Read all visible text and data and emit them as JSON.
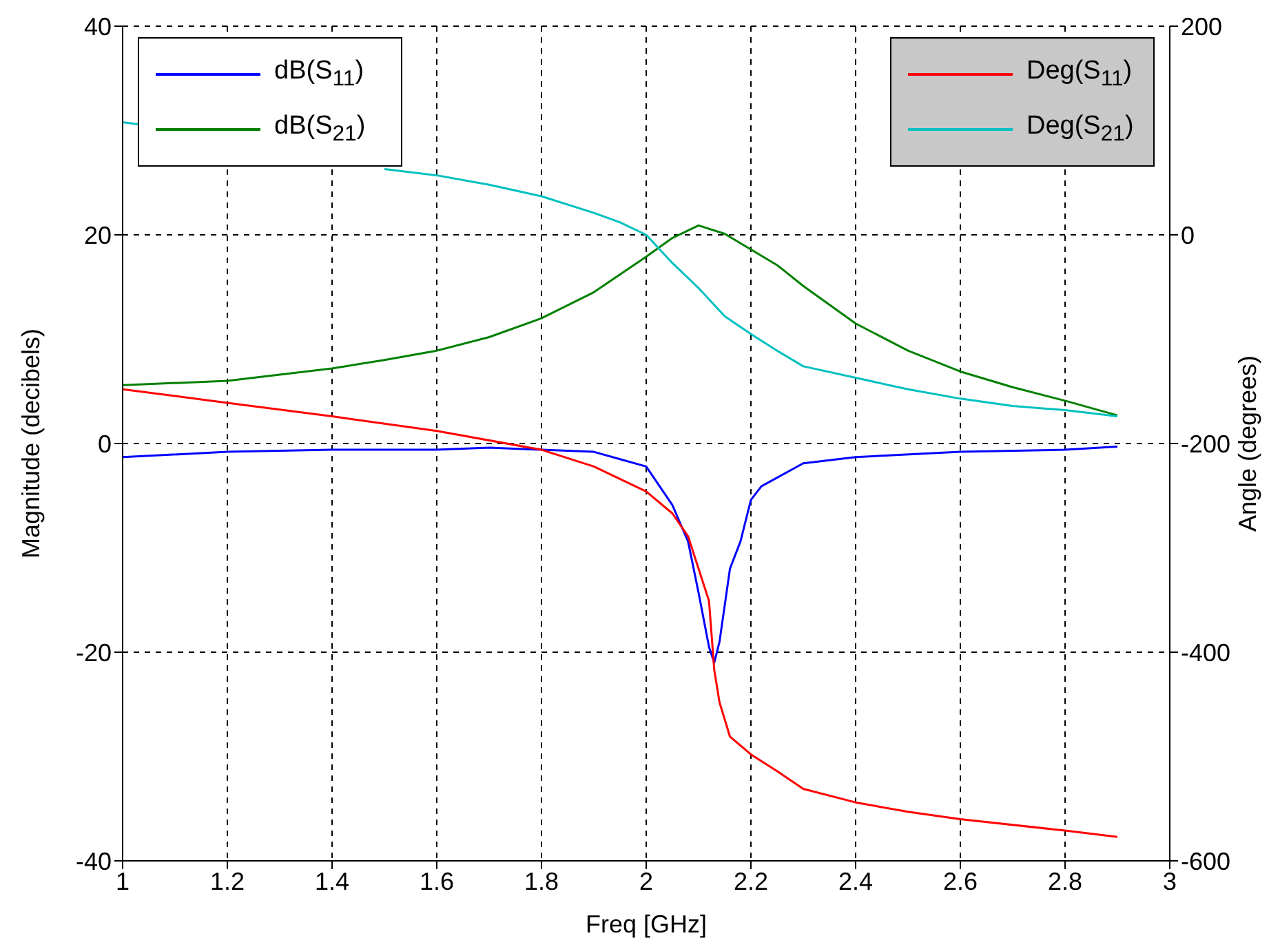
{
  "chart_data": {
    "type": "line",
    "xlabel": "Freq [GHz]",
    "ylabel": "Magnitude (decibels)",
    "y2label": "Angle (degrees)",
    "xlim": [
      1,
      3
    ],
    "xticks": [
      1,
      1.2,
      1.4,
      1.6,
      1.8,
      2,
      2.2,
      2.4,
      2.6,
      2.8,
      3
    ],
    "ylim": [
      -40,
      40
    ],
    "yticks": [
      -40,
      -20,
      0,
      20,
      40
    ],
    "y2lim": [
      -600,
      200
    ],
    "y2ticks": [
      -600,
      -400,
      -200,
      0,
      200
    ],
    "grid": true,
    "legend": "top",
    "line_style": "solid",
    "marker": "none",
    "series": [
      {
        "name": "dB(S$_{11}$)",
        "color": "#0000ff",
        "x": [
          1,
          1.2,
          1.4,
          1.6,
          1.7,
          1.8,
          1.9,
          1.95,
          2,
          2.05,
          2.08,
          2.1,
          2.12,
          2.13,
          2.14,
          2.16,
          2.18,
          2.2,
          2.22,
          2.3,
          2.4,
          2.6,
          2.8,
          2.9
        ],
        "values": [
          -1.3,
          -0.8,
          -0.6,
          -0.6,
          -0.4,
          -0.6,
          -0.8,
          -1.5,
          -2.2,
          -5.9,
          -9.4,
          -14.3,
          -19.5,
          -21,
          -19,
          -12,
          -9.4,
          -5.4,
          -4.1,
          -1.9,
          -1.3,
          -0.8,
          -0.6,
          -0.3
        ]
      },
      {
        "name": "dB(S$_{21}$)",
        "color": "#008000",
        "x": [
          1,
          1.2,
          1.4,
          1.5,
          1.6,
          1.7,
          1.8,
          1.9,
          2,
          2.05,
          2.1,
          2.15,
          2.2,
          2.25,
          2.3,
          2.4,
          2.5,
          2.6,
          2.7,
          2.8,
          2.9
        ],
        "values": [
          5.6,
          6,
          7.2,
          8,
          8.9,
          10.2,
          12,
          14.5,
          17.9,
          19.7,
          20.9,
          20.1,
          18.6,
          17.1,
          15.1,
          11.5,
          8.9,
          6.9,
          5.4,
          4.1,
          2.7
        ]
      },
      {
        "name": "Deg(S$_{11}$)",
        "color": "#ff0000",
        "axis": "y2",
        "x": [
          1,
          1.2,
          1.4,
          1.6,
          1.8,
          1.9,
          2,
          2.05,
          2.08,
          2.1,
          2.12,
          2.13,
          2.14,
          2.16,
          2.2,
          2.25,
          2.3,
          2.4,
          2.5,
          2.6,
          2.8,
          2.9
        ],
        "values": [
          -148,
          -161,
          -174,
          -188,
          -206,
          -222,
          -246,
          -267,
          -289,
          -320,
          -351,
          -417,
          -448,
          -481,
          -498,
          -514,
          -531,
          -544,
          -553,
          -560,
          -571,
          -577
        ]
      },
      {
        "name": "Deg(S$_{21}$)",
        "color": "#00c0c0",
        "axis": "y2",
        "x": [
          1,
          1.03,
          1.1,
          1.2,
          1.3,
          1.4,
          1.5,
          1.6,
          1.7,
          1.8,
          1.9,
          1.95,
          2,
          2.05,
          2.1,
          2.15,
          2.2,
          2.25,
          2.3,
          2.4,
          2.5,
          2.6,
          2.7,
          2.8,
          2.9
        ],
        "values": [
          108,
          106,
          null,
          null,
          null,
          null,
          63,
          57,
          48,
          37,
          21,
          12,
          0,
          -27,
          -51,
          -78,
          -95,
          -111,
          -126,
          -137,
          -148,
          -157,
          -164,
          -168,
          -174
        ]
      }
    ]
  }
}
